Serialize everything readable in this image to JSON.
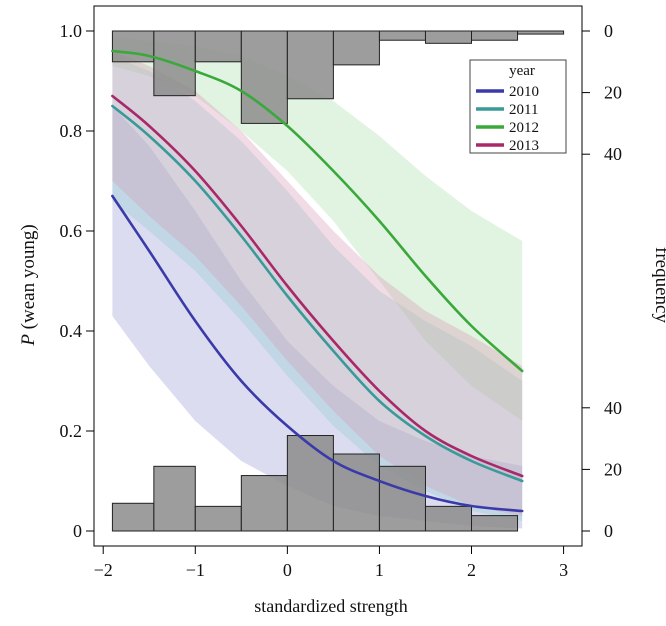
{
  "chart_data": {
    "type": "line",
    "title": "",
    "xlabel": "standardized strength",
    "ylabel_prefix": "P",
    "ylabel_rest": " (wean young)",
    "y2label": "frequency",
    "xlim": [
      -2.1,
      3.2
    ],
    "ylim": [
      -0.03,
      1.05
    ],
    "x_ticks": [
      -2,
      -1,
      0,
      1,
      2,
      3
    ],
    "x_tick_labels": [
      "−2",
      "−1",
      "0",
      "1",
      "2",
      "3"
    ],
    "y_ticks": [
      0,
      0.2,
      0.4,
      0.6,
      0.8,
      1.0
    ],
    "y_tick_labels": [
      "0",
      "0.2",
      "0.4",
      "0.6",
      "0.8",
      "1.0"
    ],
    "top_freq_ticks": [
      0,
      20,
      40
    ],
    "top_freq_tick_labels": [
      "0",
      "20",
      "40"
    ],
    "bottom_freq_ticks": [
      0,
      20,
      40
    ],
    "bottom_freq_tick_labels": [
      "0",
      "20",
      "40"
    ],
    "legend": {
      "title": "year",
      "position": "top-right"
    },
    "series": [
      {
        "name": "2010",
        "color": "#3a3aa8",
        "band_color": "#9b9bd6",
        "x": [
          -1.9,
          -1.5,
          -1.0,
          -0.5,
          0.0,
          0.5,
          1.0,
          1.5,
          2.0,
          2.55
        ],
        "y": [
          0.67,
          0.56,
          0.42,
          0.3,
          0.21,
          0.14,
          0.1,
          0.07,
          0.05,
          0.04
        ],
        "lower": [
          0.43,
          0.33,
          0.22,
          0.14,
          0.09,
          0.05,
          0.03,
          0.02,
          0.01,
          0.005
        ],
        "upper": [
          0.85,
          0.77,
          0.64,
          0.5,
          0.38,
          0.29,
          0.22,
          0.18,
          0.15,
          0.13
        ]
      },
      {
        "name": "2011",
        "color": "#3a9a9a",
        "band_color": "#8fcfcf",
        "x": [
          -1.9,
          -1.5,
          -1.0,
          -0.5,
          0.0,
          0.5,
          1.0,
          1.5,
          2.0,
          2.55
        ],
        "y": [
          0.85,
          0.79,
          0.7,
          0.59,
          0.47,
          0.36,
          0.26,
          0.19,
          0.14,
          0.1
        ],
        "lower": [
          0.66,
          0.6,
          0.52,
          0.42,
          0.31,
          0.21,
          0.13,
          0.08,
          0.04,
          0.02
        ],
        "upper": [
          0.95,
          0.92,
          0.86,
          0.78,
          0.68,
          0.57,
          0.48,
          0.42,
          0.37,
          0.3
        ]
      },
      {
        "name": "2012",
        "color": "#3aa83a",
        "band_color": "#a8dca8",
        "x": [
          -1.9,
          -1.5,
          -1.0,
          -0.5,
          0.0,
          0.5,
          1.0,
          1.5,
          2.0,
          2.55
        ],
        "y": [
          0.96,
          0.95,
          0.92,
          0.88,
          0.81,
          0.72,
          0.62,
          0.51,
          0.41,
          0.32
        ],
        "lower": [
          0.93,
          0.91,
          0.87,
          0.8,
          0.72,
          0.62,
          0.5,
          0.38,
          0.29,
          0.22
        ],
        "upper": [
          0.99,
          0.98,
          0.97,
          0.95,
          0.91,
          0.86,
          0.79,
          0.71,
          0.64,
          0.58
        ]
      },
      {
        "name": "2013",
        "color": "#a82868",
        "band_color": "#d89ab8",
        "x": [
          -1.9,
          -1.5,
          -1.0,
          -0.5,
          0.0,
          0.5,
          1.0,
          1.5,
          2.0,
          2.55
        ],
        "y": [
          0.87,
          0.81,
          0.72,
          0.61,
          0.49,
          0.38,
          0.28,
          0.2,
          0.15,
          0.11
        ],
        "lower": [
          0.7,
          0.63,
          0.55,
          0.45,
          0.34,
          0.24,
          0.15,
          0.09,
          0.05,
          0.03
        ],
        "upper": [
          0.96,
          0.93,
          0.88,
          0.8,
          0.7,
          0.6,
          0.51,
          0.44,
          0.39,
          0.33
        ]
      }
    ],
    "histograms": {
      "bin_edges": [
        -1.9,
        -1.45,
        -1.0,
        -0.5,
        0.0,
        0.5,
        1.0,
        1.5,
        2.0,
        2.5,
        3.0
      ],
      "top_counts": [
        10,
        21,
        10,
        30,
        22,
        11,
        3,
        4,
        3,
        1
      ],
      "bottom_counts": [
        9,
        21,
        8,
        18,
        31,
        25,
        21,
        8,
        5,
        0
      ]
    }
  }
}
